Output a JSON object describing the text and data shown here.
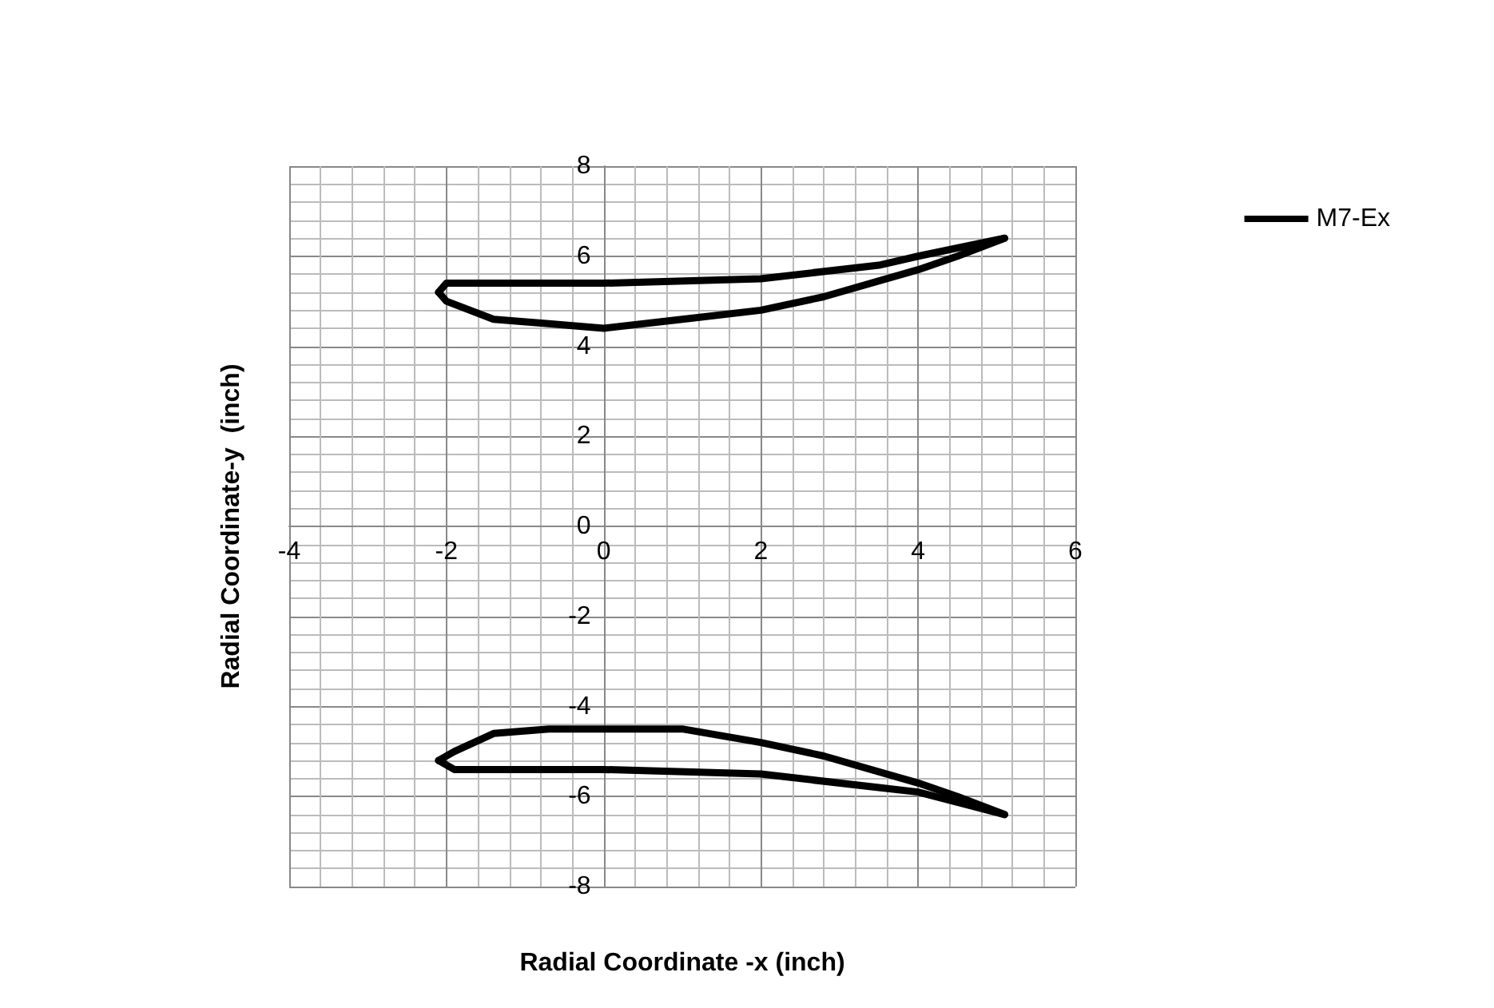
{
  "chart_data": {
    "type": "line",
    "xlabel": "Radial Coordinate -x (inch)",
    "ylabel": "Radial Coordinate-y  (inch)",
    "series": [
      {
        "name": "M7-Ex",
        "color": "#000000",
        "x": [
          -2.1,
          -2.0,
          -1.4,
          0,
          2,
          3.5,
          4,
          5.1,
          null,
          -2.1,
          -1.9,
          -1.4,
          -0.7,
          0,
          1,
          2,
          2.8,
          4,
          4.5,
          5.1
        ],
        "values": [
          5.2,
          5.4,
          5.4,
          5.4,
          5.5,
          5.8,
          6.0,
          6.4,
          null,
          -5.2,
          -5.0,
          -4.6,
          -4.5,
          -4.5,
          -4.5,
          -4.8,
          -5.1,
          -5.7,
          -6.0,
          -6.4
        ]
      },
      {
        "color": "#000000",
        "x": [
          -2.1,
          -2.0,
          -1.4,
          -0.7,
          0,
          1,
          2,
          2.8,
          4,
          4.5,
          5.1,
          null,
          -2.1,
          -1.9,
          -1.4,
          0,
          2,
          3.5,
          4,
          5.1
        ],
        "values": [
          5.2,
          5.0,
          4.6,
          4.5,
          4.4,
          4.6,
          4.8,
          5.1,
          5.7,
          6.0,
          6.4,
          null,
          -5.2,
          -5.4,
          -5.4,
          -5.4,
          -5.5,
          -5.8,
          -5.9,
          -6.4
        ]
      }
    ],
    "xlim": [
      -4,
      6
    ],
    "xticks": [
      -4,
      -2,
      0,
      2,
      4,
      6
    ],
    "ylim": [
      -8,
      8
    ],
    "yticks": [
      -8,
      -6,
      -4,
      -2,
      0,
      2,
      4,
      6,
      8
    ],
    "grid": true,
    "legend": "right",
    "marker": "none",
    "line_style": "solid"
  }
}
